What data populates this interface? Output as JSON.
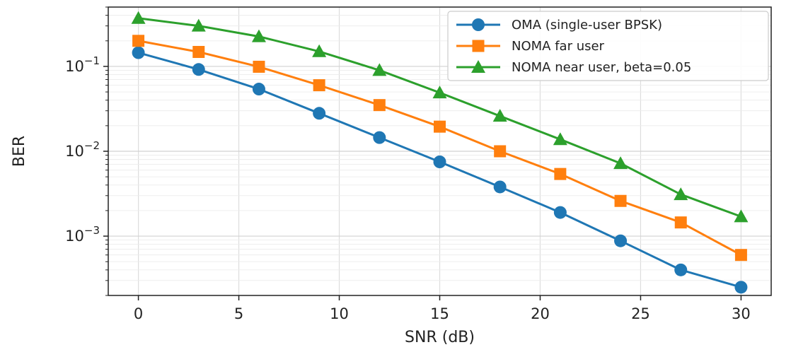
{
  "chart_data": {
    "type": "line",
    "xlabel": "SNR (dB)",
    "ylabel": "BER",
    "y_scale": "log",
    "xlim": [
      -1.5,
      31.5
    ],
    "ylim": [
      0.0002,
      0.5
    ],
    "grid": "on (major and minor)",
    "legend_position": "top-right",
    "x_ticks": [
      0,
      5,
      10,
      15,
      20,
      25,
      30
    ],
    "x_tick_labels": [
      "0",
      "5",
      "10",
      "15",
      "20",
      "25",
      "30"
    ],
    "y_ticks": [
      0.1,
      0.01,
      0.001
    ],
    "y_tick_labels": [
      {
        "base": "10",
        "exp": "−1"
      },
      {
        "base": "10",
        "exp": "−2"
      },
      {
        "base": "10",
        "exp": "−3"
      }
    ],
    "x": [
      0,
      3,
      6,
      9,
      12,
      15,
      18,
      21,
      24,
      27,
      30
    ],
    "series": [
      {
        "name": "OMA (single-user BPSK)",
        "color": "#1f77b4",
        "marker": "circle",
        "values": [
          0.145,
          0.092,
          0.054,
          0.028,
          0.0145,
          0.0075,
          0.0038,
          0.0019,
          0.00088,
          0.0004,
          0.00025
        ]
      },
      {
        "name": "NOMA far user",
        "color": "#ff7f0e",
        "marker": "square",
        "values": [
          0.2,
          0.148,
          0.099,
          0.06,
          0.035,
          0.0195,
          0.01,
          0.0054,
          0.0026,
          0.00145,
          0.0006
        ]
      },
      {
        "name": "NOMA near user, beta=0.05",
        "color": "#2ca02c",
        "marker": "triangle",
        "values": [
          0.37,
          0.3,
          0.225,
          0.15,
          0.09,
          0.049,
          0.026,
          0.0138,
          0.0072,
          0.0031,
          0.0017
        ]
      }
    ]
  }
}
